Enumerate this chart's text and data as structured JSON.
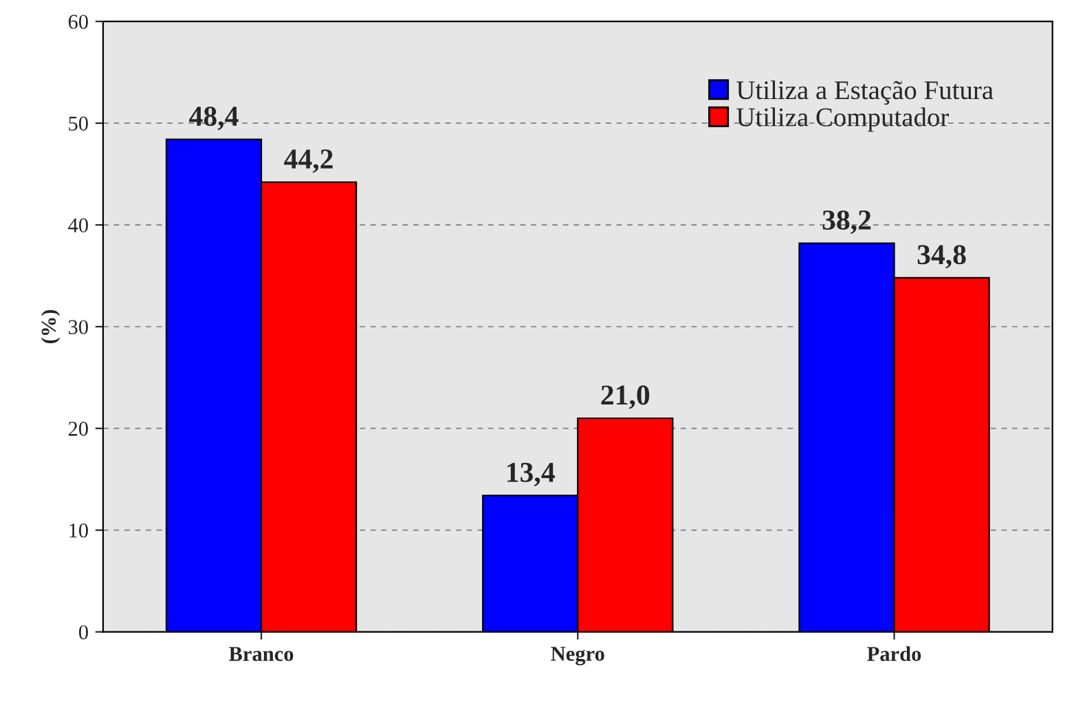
{
  "chart_data": {
    "type": "bar",
    "ylabel": "(%)",
    "categories": [
      "Branco",
      "Negro",
      "Pardo"
    ],
    "series": [
      {
        "name": "Utiliza a Estação Futura",
        "color": "#0000ff",
        "values": [
          48.4,
          13.4,
          38.2
        ]
      },
      {
        "name": "Utiliza Computador",
        "color": "#ff0000",
        "values": [
          44.2,
          21.0,
          34.8
        ]
      }
    ],
    "value_labels": [
      [
        "48,4",
        "13,4",
        "38,2"
      ],
      [
        "44,2",
        "21,0",
        "34,8"
      ]
    ],
    "ylim": [
      0,
      60
    ],
    "yticks": [
      0,
      10,
      20,
      30,
      40,
      50,
      60
    ],
    "grid": "y",
    "legend": "top right"
  }
}
